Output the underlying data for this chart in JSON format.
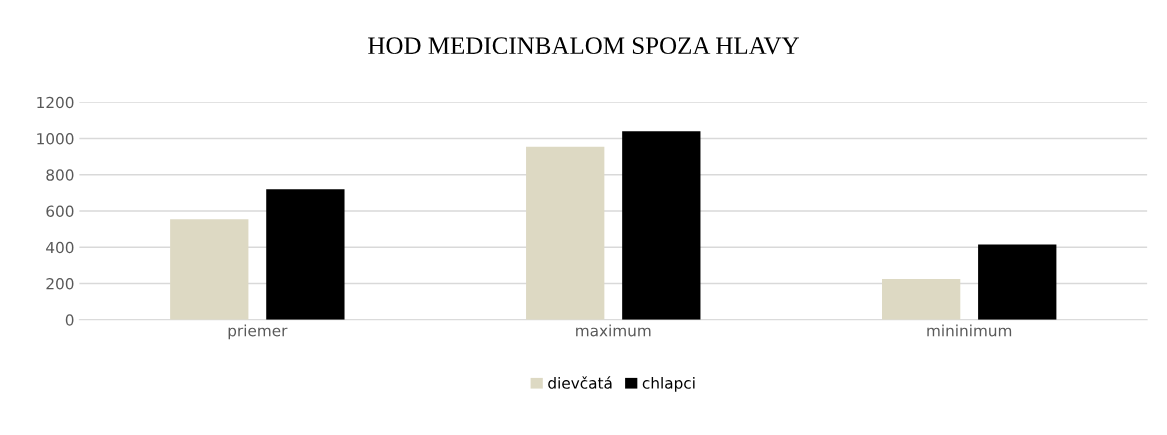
{
  "chart_data": {
    "type": "bar",
    "title": "HOD MEDICINBALOM SPOZA HLAVY",
    "categories": [
      "priemer",
      "maximum",
      "mininimum"
    ],
    "series": [
      {
        "name": "dievčatá",
        "color": "#ddd9c3",
        "values": [
          555,
          955,
          225
        ]
      },
      {
        "name": "chlapci",
        "color": "#000000",
        "values": [
          720,
          1040,
          415
        ]
      }
    ],
    "ylim": [
      0,
      1200
    ],
    "yticks": [
      0,
      200,
      400,
      600,
      800,
      1000,
      1200
    ],
    "grid": "y",
    "legend": "bottom"
  }
}
